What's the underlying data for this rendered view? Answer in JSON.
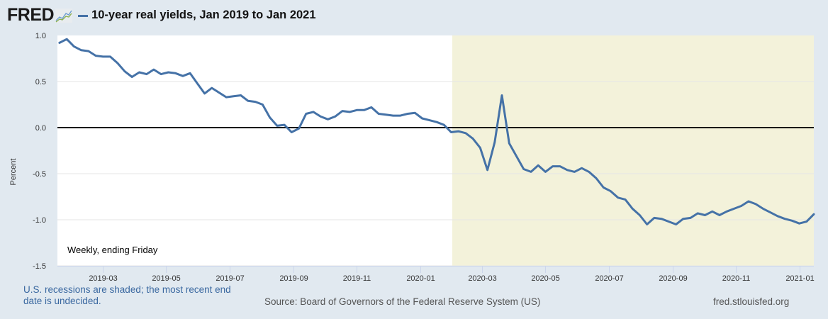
{
  "header": {
    "logo_text": "FRED",
    "logo_icon": "fred-chart-icon",
    "title": "10-year real yields, Jan 2019 to Jan 2021",
    "series_color": "#4572a7"
  },
  "chart_data": {
    "type": "line",
    "title": "10-year real yields, Jan 2019 to Jan 2021",
    "xlabel": "",
    "ylabel": "Percent",
    "frequency_note": "Weekly, ending Friday",
    "ylim": [
      -1.5,
      1.0
    ],
    "yticks": [
      1.0,
      0.5,
      0.0,
      -0.5,
      -1.0,
      -1.5
    ],
    "ytick_labels": [
      "1.0",
      "0.5",
      "0.0",
      "-0.5",
      "-1.0",
      "-1.5"
    ],
    "xlim": [
      "2019-01-16",
      "2021-01-15"
    ],
    "xticks": [
      "2019-03-01",
      "2019-05-01",
      "2019-07-01",
      "2019-09-01",
      "2019-11-01",
      "2020-01-01",
      "2020-03-01",
      "2020-05-01",
      "2020-07-01",
      "2020-09-01",
      "2020-11-01",
      "2021-01-01"
    ],
    "xtick_labels": [
      "2019-03",
      "2019-05",
      "2019-07",
      "2019-09",
      "2019-11",
      "2020-01",
      "2020-03",
      "2020-05",
      "2020-07",
      "2020-09",
      "2020-11",
      "2021-01"
    ],
    "grid": true,
    "zero_line": true,
    "recession_shading": {
      "start": "2020-02-01",
      "end": "2021-01-15",
      "color": "#f3f2da"
    },
    "series": [
      {
        "name": "10-year real yields",
        "color": "#4572a7",
        "start_date": "2019-01-18",
        "interval_days": 7,
        "values": [
          0.92,
          0.96,
          0.88,
          0.84,
          0.83,
          0.78,
          0.77,
          0.77,
          0.7,
          0.61,
          0.55,
          0.6,
          0.58,
          0.63,
          0.58,
          0.6,
          0.59,
          0.56,
          0.59,
          0.48,
          0.37,
          0.43,
          0.38,
          0.33,
          0.34,
          0.35,
          0.29,
          0.28,
          0.25,
          0.11,
          0.02,
          0.03,
          -0.05,
          -0.01,
          0.15,
          0.17,
          0.12,
          0.09,
          0.12,
          0.18,
          0.17,
          0.19,
          0.19,
          0.22,
          0.15,
          0.14,
          0.13,
          0.13,
          0.15,
          0.16,
          0.1,
          0.08,
          0.06,
          0.03,
          -0.05,
          -0.04,
          -0.06,
          -0.12,
          -0.22,
          -0.46,
          -0.16,
          0.35,
          -0.17,
          -0.31,
          -0.45,
          -0.48,
          -0.41,
          -0.48,
          -0.42,
          -0.42,
          -0.46,
          -0.48,
          -0.44,
          -0.48,
          -0.55,
          -0.65,
          -0.69,
          -0.76,
          -0.78,
          -0.88,
          -0.95,
          -1.05,
          -0.98,
          -0.99,
          -1.02,
          -1.05,
          -0.99,
          -0.98,
          -0.93,
          -0.95,
          -0.91,
          -0.95,
          -0.91,
          -0.88,
          -0.85,
          -0.8,
          -0.83,
          -0.88,
          -0.92,
          -0.96,
          -0.99,
          -1.01,
          -1.04,
          -1.02,
          -0.94
        ]
      }
    ]
  },
  "footer": {
    "recession_note": "U.S. recessions are shaded; the most recent end date is undecided.",
    "source": "Source: Board of Governors of the Federal Reserve System (US)",
    "url": "fred.stlouisfed.org"
  }
}
